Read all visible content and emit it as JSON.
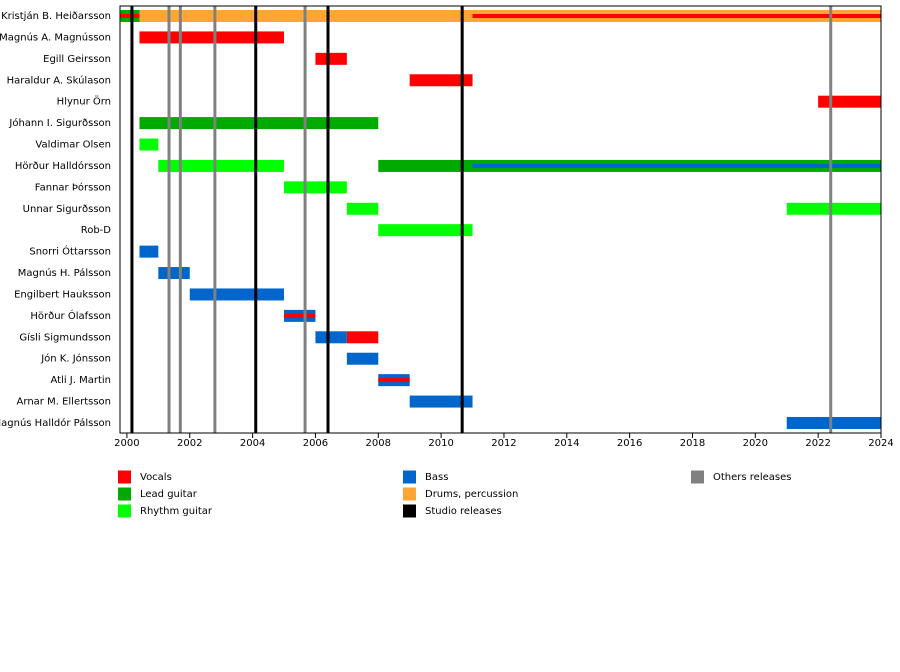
{
  "chart_data": {
    "type": "timeline",
    "categories": [
      "Kristján B. Heiðarsson",
      "Magnús A. Magnússon",
      "Egill Geirsson",
      "Haraldur A. Skúlason",
      "Hlynur Örn",
      "Jóhann I. Sigurðsson",
      "Valdimar Olsen",
      "Hörður Halldórsson",
      "Fannar Þórsson",
      "Unnar Sigurðsson",
      "Rob-D",
      "Snorri Óttarsson",
      "Magnús H. Pálsson",
      "Engilbert Hauksson",
      "Hörður Ólafsson",
      "Gísli Sigmundsson",
      "Jón K. Jónsson",
      "Atli J. Martin",
      "Arnar M. Ellertsson",
      "Magnús Halldór Pálsson"
    ],
    "series": [
      {
        "name": "Vocals",
        "color": "#ff0000",
        "values": [
          [
            [
              1999.8,
              2000.4
            ],
            [
              2011,
              2024
            ]
          ],
          [
            [
              2000.4,
              2005
            ]
          ],
          [
            [
              2006,
              2007
            ]
          ],
          [
            [
              2009,
              2011
            ]
          ],
          [
            [
              2022,
              2024
            ]
          ],
          null,
          null,
          null,
          null,
          null,
          null,
          null,
          null,
          null,
          [
            [
              2005,
              2006
            ]
          ],
          [
            [
              2007,
              2008
            ]
          ],
          null,
          [
            [
              2008,
              2009
            ]
          ],
          null,
          null
        ]
      },
      {
        "name": "Lead guitar",
        "color": "#00aa00",
        "values": [
          [
            [
              1999.8,
              2000.4
            ]
          ],
          null,
          null,
          null,
          null,
          [
            [
              2000.4,
              2008
            ]
          ],
          null,
          [
            [
              2008,
              2024
            ]
          ],
          null,
          null,
          null,
          null,
          null,
          null,
          null,
          null,
          null,
          null,
          null,
          null
        ]
      },
      {
        "name": "Rhythm guitar",
        "color": "#00ff00",
        "values": [
          null,
          null,
          null,
          null,
          null,
          null,
          [
            [
              2000.4,
              2001
            ]
          ],
          [
            [
              2001,
              2005
            ]
          ],
          [
            [
              2005,
              2007
            ]
          ],
          [
            [
              2007,
              2008
            ],
            [
              2021,
              2024
            ]
          ],
          [
            [
              2008,
              2011
            ]
          ],
          null,
          null,
          null,
          null,
          null,
          null,
          null,
          null,
          null
        ]
      },
      {
        "name": "Bass",
        "color": "#0066cc",
        "values": [
          null,
          null,
          null,
          null,
          null,
          null,
          null,
          [
            [
              2011,
              2024
            ]
          ],
          null,
          null,
          null,
          [
            [
              2000.4,
              2001
            ]
          ],
          [
            [
              2001,
              2002
            ]
          ],
          [
            [
              2002,
              2005
            ]
          ],
          [
            [
              2005,
              2006
            ]
          ],
          [
            [
              2006,
              2007
            ]
          ],
          [
            [
              2007,
              2008
            ]
          ],
          [
            [
              2008,
              2009
            ]
          ],
          [
            [
              2009,
              2011
            ]
          ],
          [
            [
              2021,
              2024
            ]
          ]
        ]
      },
      {
        "name": "Drums, percussion",
        "color": "#ffa533",
        "values": [
          [
            [
              2000.4,
              2024
            ]
          ],
          null,
          null,
          null,
          null,
          null,
          null,
          null,
          null,
          null,
          null,
          null,
          null,
          null,
          null,
          null,
          null,
          null,
          null,
          null
        ]
      }
    ],
    "markers": [
      {
        "name": "Studio releases",
        "color": "#000000",
        "x": [
          2000.16,
          2004.1,
          2006.4,
          2010.67
        ]
      },
      {
        "name": "Others releases",
        "color": "#808080",
        "x": [
          2001.34,
          2001.7,
          2002.8,
          2005.67,
          2022.4
        ]
      }
    ],
    "xlim": [
      1999.78,
      2024
    ],
    "xticks": [
      2000,
      2002,
      2004,
      2006,
      2008,
      2010,
      2012,
      2014,
      2016,
      2018,
      2020,
      2022,
      2024
    ]
  }
}
